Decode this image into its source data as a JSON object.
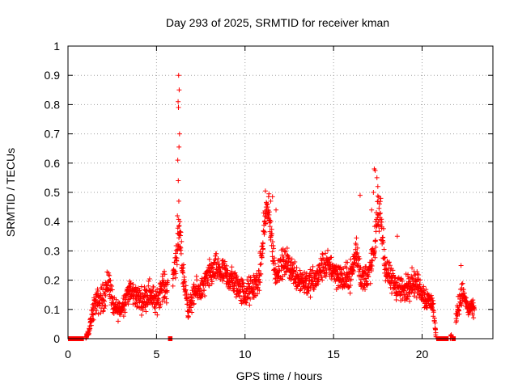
{
  "chart_data": {
    "type": "scatter",
    "title": "Day 293 of 2025, SRMTID for receiver kman",
    "xlabel": "GPS time / hours",
    "ylabel": "SRMTID / TECUs",
    "xlim": [
      0,
      24
    ],
    "ylim": [
      0,
      1
    ],
    "xticks": [
      0,
      5,
      10,
      15,
      20
    ],
    "xtick_labels": [
      "0",
      "5",
      "10",
      "15",
      "20"
    ],
    "yticks": [
      0,
      0.1,
      0.2,
      0.3,
      0.4,
      0.5,
      0.6,
      0.7,
      0.8,
      0.9,
      1
    ],
    "ytick_labels": [
      "0",
      "0.1",
      "0.2",
      "0.3",
      "0.4",
      "0.5",
      "0.6",
      "0.7",
      "0.8",
      "0.9",
      "1"
    ],
    "grid": true,
    "series": [
      {
        "name": "SRMTID",
        "color": "#ff0000",
        "marker": "plus",
        "envelope_hours": [
          0.0,
          1.0,
          1.2,
          1.5,
          2.0,
          2.3,
          2.6,
          3.0,
          3.4,
          3.8,
          4.2,
          4.6,
          5.0,
          5.3,
          5.6,
          5.9,
          6.1,
          6.3,
          6.5,
          6.8,
          7.2,
          7.6,
          8.0,
          8.4,
          8.8,
          9.2,
          9.6,
          10.0,
          10.4,
          10.8,
          11.0,
          11.2,
          11.4,
          11.7,
          12.0,
          12.4,
          12.8,
          13.2,
          13.6,
          14.0,
          14.4,
          14.8,
          15.2,
          15.6,
          16.0,
          16.3,
          16.6,
          17.0,
          17.3,
          17.5,
          17.7,
          17.9,
          18.2,
          18.6,
          19.0,
          19.4,
          19.8,
          20.2,
          20.6,
          20.8,
          21.6,
          21.8,
          22.0,
          22.3,
          22.6,
          22.8
        ],
        "envelope_center": [
          0.0,
          0.0,
          0.03,
          0.12,
          0.14,
          0.2,
          0.1,
          0.1,
          0.16,
          0.15,
          0.13,
          0.16,
          0.12,
          0.18,
          0.17,
          0.2,
          0.28,
          0.35,
          0.22,
          0.1,
          0.16,
          0.17,
          0.22,
          0.24,
          0.22,
          0.2,
          0.18,
          0.15,
          0.17,
          0.2,
          0.32,
          0.45,
          0.4,
          0.22,
          0.25,
          0.26,
          0.22,
          0.2,
          0.19,
          0.2,
          0.25,
          0.25,
          0.22,
          0.2,
          0.22,
          0.3,
          0.2,
          0.22,
          0.3,
          0.45,
          0.4,
          0.25,
          0.2,
          0.18,
          0.16,
          0.2,
          0.18,
          0.14,
          0.12,
          0.0,
          0.0,
          0.06,
          0.1,
          0.16,
          0.1,
          0.1
        ],
        "envelope_spread": [
          0.0,
          0.0,
          0.03,
          0.06,
          0.07,
          0.08,
          0.05,
          0.05,
          0.06,
          0.06,
          0.06,
          0.07,
          0.06,
          0.07,
          0.07,
          0.06,
          0.09,
          0.1,
          0.07,
          0.05,
          0.06,
          0.06,
          0.07,
          0.07,
          0.07,
          0.07,
          0.07,
          0.07,
          0.07,
          0.07,
          0.09,
          0.08,
          0.08,
          0.07,
          0.07,
          0.07,
          0.07,
          0.07,
          0.07,
          0.07,
          0.07,
          0.07,
          0.07,
          0.07,
          0.07,
          0.09,
          0.07,
          0.07,
          0.09,
          0.09,
          0.09,
          0.08,
          0.07,
          0.07,
          0.07,
          0.07,
          0.06,
          0.06,
          0.05,
          0.0,
          0.0,
          0.05,
          0.05,
          0.06,
          0.04,
          0.04
        ],
        "spikes": [
          {
            "x": 6.25,
            "y": 0.9
          },
          {
            "x": 6.28,
            "y": 0.85
          },
          {
            "x": 6.22,
            "y": 0.81
          },
          {
            "x": 6.24,
            "y": 0.79
          },
          {
            "x": 6.3,
            "y": 0.7
          },
          {
            "x": 6.27,
            "y": 0.655
          },
          {
            "x": 6.2,
            "y": 0.61
          },
          {
            "x": 6.23,
            "y": 0.54
          },
          {
            "x": 6.26,
            "y": 0.47
          },
          {
            "x": 6.18,
            "y": 0.42
          },
          {
            "x": 6.32,
            "y": 0.4
          },
          {
            "x": 6.2,
            "y": 0.36
          },
          {
            "x": 11.15,
            "y": 0.505
          },
          {
            "x": 11.35,
            "y": 0.495
          },
          {
            "x": 11.55,
            "y": 0.485
          },
          {
            "x": 11.75,
            "y": 0.44
          },
          {
            "x": 11.05,
            "y": 0.43
          },
          {
            "x": 11.45,
            "y": 0.47
          },
          {
            "x": 16.5,
            "y": 0.49
          },
          {
            "x": 17.3,
            "y": 0.58
          },
          {
            "x": 17.35,
            "y": 0.575
          },
          {
            "x": 17.45,
            "y": 0.55
          },
          {
            "x": 17.5,
            "y": 0.52
          },
          {
            "x": 17.25,
            "y": 0.5
          },
          {
            "x": 17.15,
            "y": 0.44
          },
          {
            "x": 18.6,
            "y": 0.35
          },
          {
            "x": 22.2,
            "y": 0.25
          }
        ],
        "zero_ranges_hours": [
          [
            0.0,
            0.9
          ],
          [
            5.65,
            5.9
          ],
          [
            20.8,
            21.5
          ],
          [
            21.65,
            21.9
          ]
        ],
        "gaps_hours": [
          [
            22.95,
            24.0
          ]
        ]
      }
    ]
  }
}
